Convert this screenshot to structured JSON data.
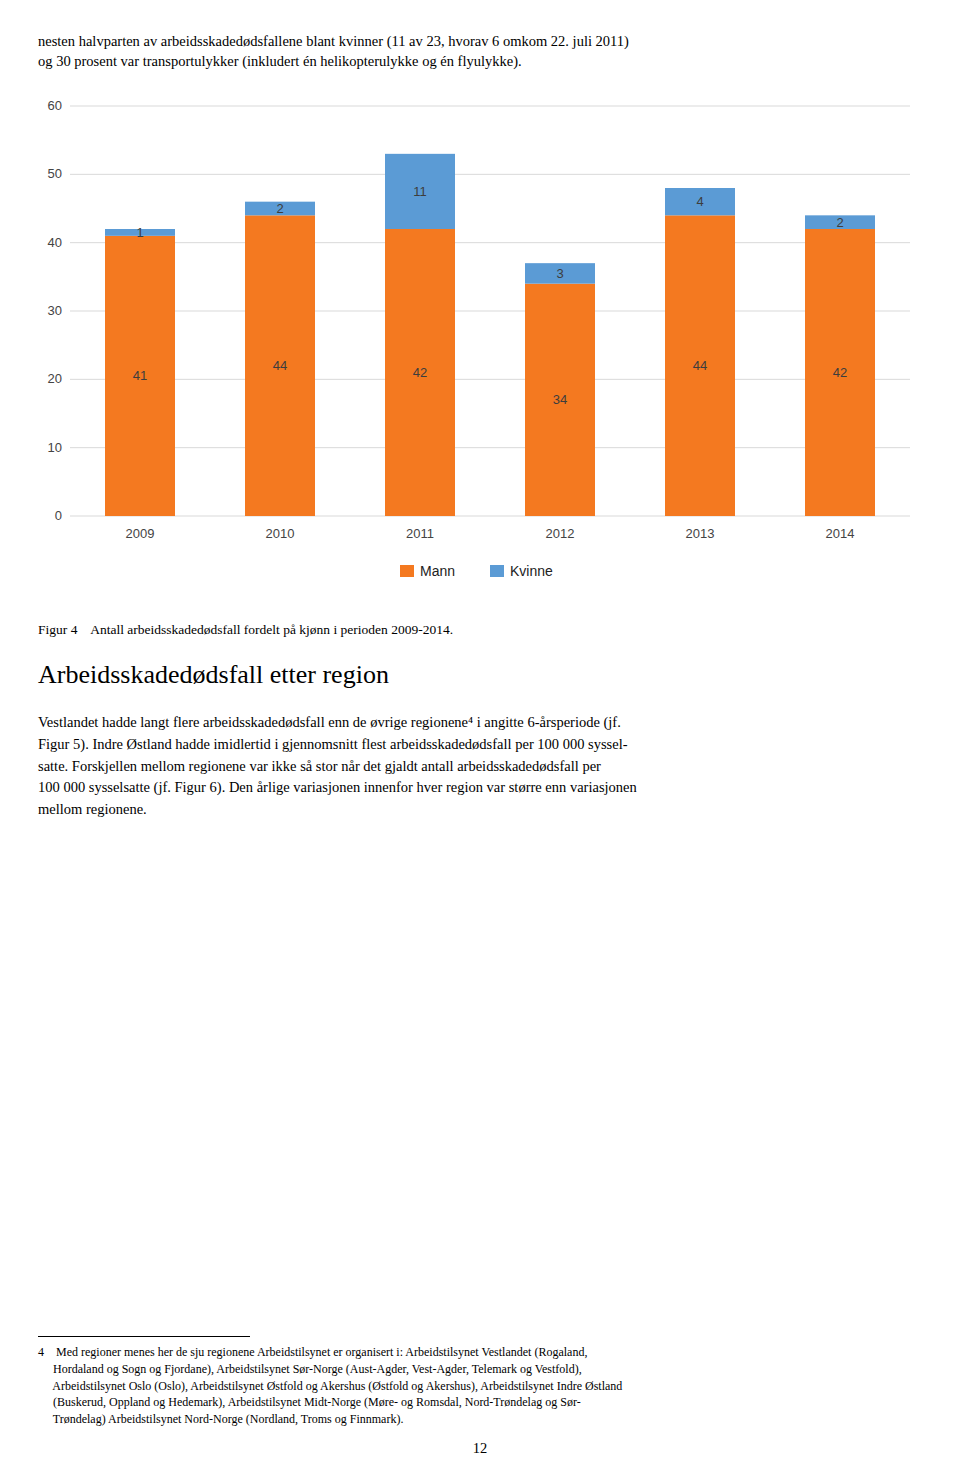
{
  "chart_data": {
    "type": "bar",
    "stacked": true,
    "title": "Figur 4    Antall arbeidsskadedødsfall fordelt på kjønn i perioden 2009-2014.",
    "categories": [
      "2009",
      "2010",
      "2011",
      "2012",
      "2013",
      "2014"
    ],
    "series": [
      {
        "name": "Mann",
        "color": "#F47920",
        "values": [
          41,
          44,
          42,
          34,
          44,
          42
        ]
      },
      {
        "name": "Kvinne",
        "color": "#5B9BD5",
        "values": [
          1,
          2,
          11,
          3,
          4,
          2
        ]
      }
    ],
    "ylim": [
      0,
      60
    ],
    "yticks": [
      0,
      10,
      20,
      30,
      40,
      50,
      60
    ],
    "grid": true,
    "data_labels": true,
    "legend": "bottom"
  },
  "header_text": "nesten halvparten av arbeidsskadedødsfallene blant kvinner (11 av 23, hvorav 6 omkom 22. juli 2011)\nog 30 prosent var transportulykker (inkludert én helikopterulykke og én flyulykke).",
  "section_title": "Arbeidsskadedødsfall etter region",
  "section_body": "Vestlandet hadde langt flere arbeidsskadedødsfall enn de øvrige regionene⁴ i angitte 6-årsperiode (jf.\nFigur 5). Indre Østland hadde imidlertid i gjennomsnitt flest arbeidsskadedødsfall per 100 000 syssel-\nsatte. Forskjellen mellom regionene var ikke så stor når det gjaldt antall arbeidsskadedødsfall per\n100 000 sysselsatte (jf. Figur 6). Den årlige variasjonen innenfor hver region var større enn variasjonen\nmellom regionene.",
  "footnote_text": "4    Med regioner menes her de sju regionene Arbeidstilsynet er organisert i: Arbeidstilsynet Vestlandet (Rogaland,\n     Hordaland og Sogn og Fjordane), Arbeidstilsynet Sør-Norge (Aust-Agder, Vest-Agder, Telemark og Vestfold),\n     Arbeidstilsynet Oslo (Oslo), Arbeidstilsynet Østfold og Akershus (Østfold og Akershus), Arbeidstilsynet Indre Østland\n     (Buskerud, Oppland og Hedemark), Arbeidstilsynet Midt-Norge (Møre- og Romsdal, Nord-Trøndelag og Sør-\n     Trøndelag) Arbeidstilsynet Nord-Norge (Nordland, Troms og Finnmark).",
  "page_number": "12"
}
